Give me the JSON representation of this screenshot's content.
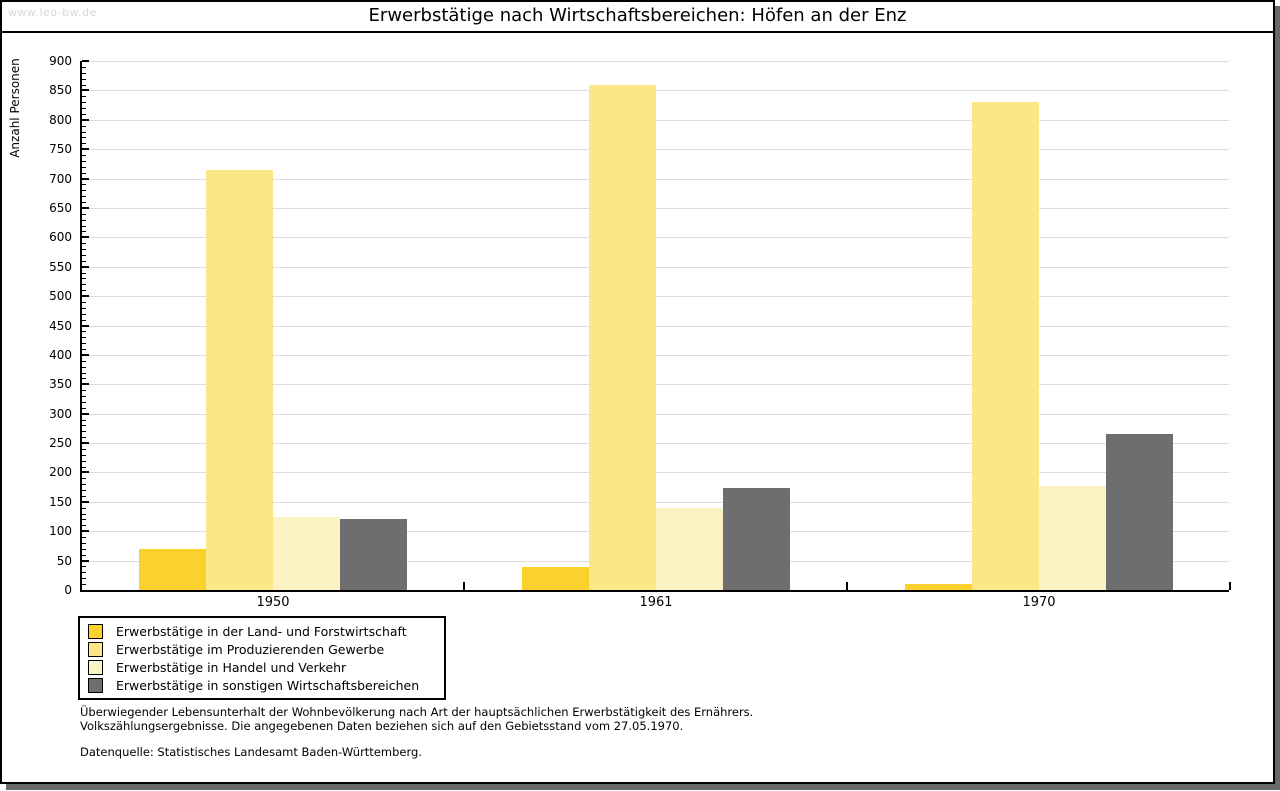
{
  "header": {
    "watermark": "www.leo-bw.de",
    "title": "Erwerbstätige nach Wirtschaftsbereichen: Höfen an der Enz"
  },
  "chart_data": {
    "type": "bar",
    "title": "Erwerbstätige nach Wirtschaftsbereichen: Höfen an der Enz",
    "ylabel": "Anzahl Personen",
    "xlabel": "",
    "ylim": [
      0,
      900
    ],
    "ytick_step": 50,
    "ytick_minor_step": 10,
    "grid": true,
    "legend_position": "bottom-left",
    "categories": [
      "1950",
      "1961",
      "1970"
    ],
    "series": [
      {
        "name": "Erwerbstätige in der Land- und Forstwirtschaft",
        "color": "#FBD22D",
        "values": [
          69,
          39,
          10
        ]
      },
      {
        "name": "Erwerbstätige im Produzierenden Gewerbe",
        "color": "#FCE685",
        "values": [
          715,
          860,
          831
        ]
      },
      {
        "name": "Erwerbstätige in Handel und Verkehr",
        "color": "#FBF3C3",
        "values": [
          124,
          139,
          177
        ]
      },
      {
        "name": "Erwerbstätige in sonstigen Wirtschaftsbereichen",
        "color": "#6E6E6E",
        "values": [
          120,
          173,
          266
        ]
      }
    ]
  },
  "footnotes": {
    "line1": "Überwiegender Lebensunterhalt der Wohnbevölkerung nach Art der hauptsächlichen Erwerbstätigkeit des Ernährers.",
    "line2": "Volkszählungsergebnisse. Die angegebenen Daten beziehen sich auf den Gebietsstand vom 27.05.1970.",
    "source": "Datenquelle: Statistisches Landesamt Baden-Württemberg."
  },
  "colors": {
    "gridline": "#DCDCDC",
    "axis": "#000000",
    "watermark": "#D8D8D8",
    "frame_shadow": "#686868"
  }
}
